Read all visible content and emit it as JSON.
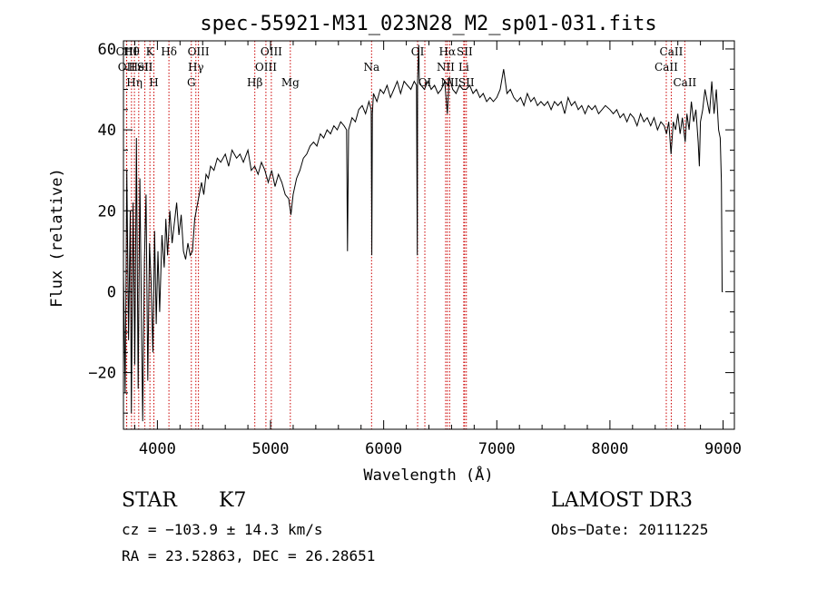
{
  "chart_data": {
    "type": "line",
    "title": "spec-55921-M31_023N28_M2_sp01-031.fits",
    "xlabel": "Wavelength (Å)",
    "ylabel": "Flux (relative)",
    "xlim": [
      3700,
      9100
    ],
    "ylim": [
      -34,
      62
    ],
    "xticks": [
      4000,
      5000,
      6000,
      7000,
      8000,
      9000
    ],
    "yticks": [
      -20,
      0,
      20,
      40,
      60
    ],
    "line_color": "#000000",
    "marker_color": "#cc0000",
    "series": [
      {
        "name": "flux",
        "points": [
          [
            3700,
            5
          ],
          [
            3715,
            -25
          ],
          [
            3730,
            30
          ],
          [
            3745,
            -12
          ],
          [
            3760,
            20
          ],
          [
            3770,
            -30
          ],
          [
            3785,
            22
          ],
          [
            3800,
            -18
          ],
          [
            3815,
            38
          ],
          [
            3830,
            -24
          ],
          [
            3845,
            28
          ],
          [
            3860,
            -8
          ],
          [
            3870,
            -32
          ],
          [
            3885,
            8
          ],
          [
            3900,
            24
          ],
          [
            3915,
            -22
          ],
          [
            3930,
            12
          ],
          [
            3945,
            2
          ],
          [
            3960,
            -15
          ],
          [
            3975,
            15
          ],
          [
            3990,
            -8
          ],
          [
            4005,
            10
          ],
          [
            4020,
            -5
          ],
          [
            4040,
            14
          ],
          [
            4060,
            6
          ],
          [
            4075,
            18
          ],
          [
            4090,
            9
          ],
          [
            4110,
            20
          ],
          [
            4130,
            12
          ],
          [
            4150,
            17
          ],
          [
            4170,
            22
          ],
          [
            4190,
            14
          ],
          [
            4210,
            19
          ],
          [
            4230,
            10
          ],
          [
            4250,
            8
          ],
          [
            4270,
            12
          ],
          [
            4290,
            9
          ],
          [
            4310,
            10
          ],
          [
            4330,
            18
          ],
          [
            4350,
            21
          ],
          [
            4370,
            24
          ],
          [
            4390,
            27
          ],
          [
            4410,
            24
          ],
          [
            4430,
            29
          ],
          [
            4450,
            28
          ],
          [
            4470,
            31
          ],
          [
            4500,
            30
          ],
          [
            4530,
            33
          ],
          [
            4560,
            32
          ],
          [
            4600,
            34
          ],
          [
            4630,
            31
          ],
          [
            4660,
            35
          ],
          [
            4700,
            33
          ],
          [
            4730,
            34
          ],
          [
            4760,
            32
          ],
          [
            4800,
            35
          ],
          [
            4830,
            30
          ],
          [
            4860,
            31
          ],
          [
            4890,
            29
          ],
          [
            4920,
            32
          ],
          [
            4950,
            30
          ],
          [
            4980,
            27
          ],
          [
            5010,
            30
          ],
          [
            5040,
            26
          ],
          [
            5070,
            29
          ],
          [
            5100,
            27
          ],
          [
            5130,
            24
          ],
          [
            5160,
            23
          ],
          [
            5180,
            19
          ],
          [
            5200,
            24
          ],
          [
            5230,
            28
          ],
          [
            5260,
            30
          ],
          [
            5290,
            33
          ],
          [
            5320,
            34
          ],
          [
            5350,
            36
          ],
          [
            5380,
            37
          ],
          [
            5410,
            36
          ],
          [
            5440,
            39
          ],
          [
            5470,
            38
          ],
          [
            5500,
            40
          ],
          [
            5530,
            39
          ],
          [
            5560,
            41
          ],
          [
            5590,
            40
          ],
          [
            5620,
            42
          ],
          [
            5650,
            41
          ],
          [
            5672,
            40
          ],
          [
            5680,
            10
          ],
          [
            5690,
            40
          ],
          [
            5720,
            43
          ],
          [
            5750,
            42
          ],
          [
            5780,
            45
          ],
          [
            5810,
            46
          ],
          [
            5840,
            44
          ],
          [
            5870,
            47
          ],
          [
            5890,
            45
          ],
          [
            5895,
            9
          ],
          [
            5900,
            44
          ],
          [
            5910,
            49
          ],
          [
            5940,
            47
          ],
          [
            5970,
            50
          ],
          [
            6000,
            49
          ],
          [
            6030,
            51
          ],
          [
            6060,
            48
          ],
          [
            6090,
            50
          ],
          [
            6120,
            52
          ],
          [
            6150,
            49
          ],
          [
            6180,
            52
          ],
          [
            6210,
            51
          ],
          [
            6240,
            50
          ],
          [
            6270,
            52
          ],
          [
            6290,
            51
          ],
          [
            6297,
            9
          ],
          [
            6300,
            52
          ],
          [
            6310,
            61
          ],
          [
            6315,
            52
          ],
          [
            6330,
            51
          ],
          [
            6360,
            50
          ],
          [
            6390,
            52
          ],
          [
            6420,
            50
          ],
          [
            6450,
            51
          ],
          [
            6480,
            49
          ],
          [
            6510,
            50
          ],
          [
            6540,
            52
          ],
          [
            6563,
            44
          ],
          [
            6580,
            53
          ],
          [
            6610,
            50
          ],
          [
            6640,
            49
          ],
          [
            6670,
            51
          ],
          [
            6700,
            50
          ],
          [
            6730,
            50
          ],
          [
            6760,
            51
          ],
          [
            6790,
            49
          ],
          [
            6820,
            50
          ],
          [
            6850,
            48
          ],
          [
            6880,
            49
          ],
          [
            6910,
            47
          ],
          [
            6940,
            48
          ],
          [
            6970,
            47
          ],
          [
            7000,
            48
          ],
          [
            7030,
            50
          ],
          [
            7060,
            55
          ],
          [
            7090,
            49
          ],
          [
            7120,
            50
          ],
          [
            7150,
            48
          ],
          [
            7180,
            47
          ],
          [
            7210,
            48
          ],
          [
            7240,
            46
          ],
          [
            7270,
            49
          ],
          [
            7300,
            47
          ],
          [
            7330,
            48
          ],
          [
            7360,
            46
          ],
          [
            7390,
            47
          ],
          [
            7420,
            46
          ],
          [
            7450,
            47
          ],
          [
            7480,
            45
          ],
          [
            7510,
            47
          ],
          [
            7540,
            46
          ],
          [
            7570,
            47
          ],
          [
            7600,
            44
          ],
          [
            7630,
            48
          ],
          [
            7660,
            46
          ],
          [
            7690,
            47
          ],
          [
            7720,
            45
          ],
          [
            7750,
            46
          ],
          [
            7780,
            44
          ],
          [
            7810,
            46
          ],
          [
            7840,
            45
          ],
          [
            7870,
            46
          ],
          [
            7900,
            44
          ],
          [
            7930,
            45
          ],
          [
            7960,
            46
          ],
          [
            8000,
            45
          ],
          [
            8030,
            44
          ],
          [
            8060,
            45
          ],
          [
            8090,
            43
          ],
          [
            8120,
            44
          ],
          [
            8150,
            42
          ],
          [
            8180,
            44
          ],
          [
            8210,
            43
          ],
          [
            8240,
            41
          ],
          [
            8270,
            44
          ],
          [
            8300,
            42
          ],
          [
            8330,
            43
          ],
          [
            8360,
            41
          ],
          [
            8390,
            43
          ],
          [
            8420,
            40
          ],
          [
            8450,
            42
          ],
          [
            8480,
            41
          ],
          [
            8500,
            39
          ],
          [
            8520,
            42
          ],
          [
            8540,
            34
          ],
          [
            8560,
            42
          ],
          [
            8580,
            40
          ],
          [
            8600,
            44
          ],
          [
            8620,
            39
          ],
          [
            8640,
            43
          ],
          [
            8665,
            37
          ],
          [
            8680,
            44
          ],
          [
            8700,
            40
          ],
          [
            8720,
            47
          ],
          [
            8740,
            42
          ],
          [
            8760,
            45
          ],
          [
            8780,
            37
          ],
          [
            8790,
            31
          ],
          [
            8800,
            42
          ],
          [
            8820,
            45
          ],
          [
            8840,
            50
          ],
          [
            8860,
            47
          ],
          [
            8880,
            44
          ],
          [
            8900,
            52
          ],
          [
            8920,
            44
          ],
          [
            8940,
            50
          ],
          [
            8960,
            40
          ],
          [
            8975,
            38
          ],
          [
            8985,
            27
          ],
          [
            8992,
            0
          ],
          [
            8998,
            0
          ]
        ]
      }
    ],
    "line_markers": [
      {
        "x": 3727,
        "label": "OII",
        "row": 1
      },
      {
        "x": 3729,
        "label": "OIII",
        "row": 0
      },
      {
        "x": 3771,
        "label": "Hθ",
        "row": 0
      },
      {
        "x": 3797,
        "label": "Hη",
        "row": 2
      },
      {
        "x": 3835,
        "label": "HeI",
        "row": 1
      },
      {
        "x": 3889,
        "label": "SII",
        "row": 1
      },
      {
        "x": 3934,
        "label": "K",
        "row": 0
      },
      {
        "x": 3969,
        "label": "H",
        "row": 2
      },
      {
        "x": 4102,
        "label": "Hδ",
        "row": 0
      },
      {
        "x": 4300,
        "label": "G",
        "row": 2
      },
      {
        "x": 4340,
        "label": "Hγ",
        "row": 1
      },
      {
        "x": 4363,
        "label": "OIII",
        "row": 0
      },
      {
        "x": 4861,
        "label": "Hβ",
        "row": 2
      },
      {
        "x": 4959,
        "label": "OIII",
        "row": 1
      },
      {
        "x": 5007,
        "label": "OIII",
        "row": 0
      },
      {
        "x": 5175,
        "label": "Mg",
        "row": 2
      },
      {
        "x": 5893,
        "label": "Na",
        "row": 1
      },
      {
        "x": 6300,
        "label": "OI",
        "row": 0
      },
      {
        "x": 6364,
        "label": "OI",
        "row": 2
      },
      {
        "x": 6548,
        "label": "NII",
        "row": 1
      },
      {
        "x": 6563,
        "label": "Hα",
        "row": 0
      },
      {
        "x": 6583,
        "label": "NII",
        "row": 2
      },
      {
        "x": 6716,
        "label": "SII",
        "row": 0
      },
      {
        "x": 6731,
        "label": "SII",
        "row": 2
      },
      {
        "x": 6708,
        "label": "Li",
        "row": 1
      },
      {
        "x": 8498,
        "label": "CaII",
        "row": 1
      },
      {
        "x": 8542,
        "label": "CaII",
        "row": 0
      },
      {
        "x": 8662,
        "label": "CaII",
        "row": 2
      }
    ]
  },
  "info": {
    "class_label": "STAR",
    "subclass_label": "K7",
    "survey_label": "LAMOST DR3",
    "velocity_text": "cz = −103.9 ± 14.3 km/s",
    "obs_date_text": "Obs−Date: 20111225",
    "coords_text": "RA =  23.52863, DEC =  26.28651"
  }
}
